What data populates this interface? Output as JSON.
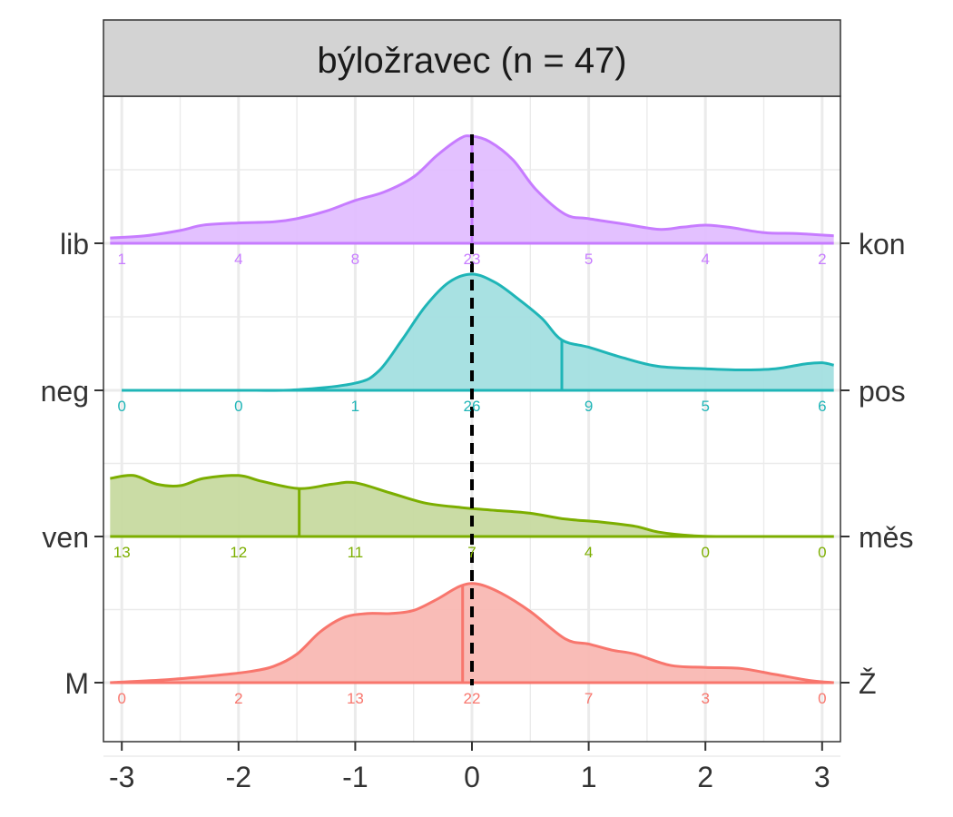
{
  "chart_data": {
    "type": "ridgeline-density",
    "panel_title": "býložravec (n = 47)",
    "xlim": [
      -3.1,
      3.1
    ],
    "x_ticks": [
      -3,
      -2,
      -1,
      0,
      1,
      2,
      3
    ],
    "x_tick_labels": [
      "-3",
      "-2",
      "-1",
      "0",
      "1",
      "2",
      "3"
    ],
    "reference_line": {
      "x": 0,
      "style": "dashed",
      "color": "#000000"
    },
    "count_positions": [
      -3,
      -2,
      -1,
      0,
      1,
      2,
      3
    ],
    "series": [
      {
        "left_label": "lib",
        "right_label": "kon",
        "color": "#C77CFF",
        "fill": "#E2BEFF",
        "mean": 0,
        "counts": [
          "1",
          "4",
          "8",
          "23",
          "5",
          "4",
          "2"
        ],
        "density": [
          [
            -3.1,
            0.05
          ],
          [
            -2.8,
            0.07
          ],
          [
            -2.5,
            0.12
          ],
          [
            -2.3,
            0.17
          ],
          [
            -2.0,
            0.19
          ],
          [
            -1.7,
            0.2
          ],
          [
            -1.5,
            0.23
          ],
          [
            -1.25,
            0.3
          ],
          [
            -1.0,
            0.4
          ],
          [
            -0.75,
            0.48
          ],
          [
            -0.5,
            0.62
          ],
          [
            -0.3,
            0.82
          ],
          [
            -0.1,
            0.98
          ],
          [
            0.0,
            1.0
          ],
          [
            0.15,
            0.95
          ],
          [
            0.35,
            0.78
          ],
          [
            0.55,
            0.5
          ],
          [
            0.8,
            0.27
          ],
          [
            1.0,
            0.23
          ],
          [
            1.3,
            0.18
          ],
          [
            1.6,
            0.13
          ],
          [
            1.8,
            0.15
          ],
          [
            2.0,
            0.17
          ],
          [
            2.2,
            0.15
          ],
          [
            2.5,
            0.1
          ],
          [
            2.8,
            0.09
          ],
          [
            3.1,
            0.07
          ]
        ]
      },
      {
        "left_label": "neg",
        "right_label": "pos",
        "color": "#1FB5B7",
        "fill": "#A3DFE0",
        "mean": 0.77,
        "counts": [
          "0",
          "0",
          "1",
          "26",
          "9",
          "5",
          "6"
        ],
        "density": [
          [
            -3.0,
            0.0
          ],
          [
            -2.5,
            0.0
          ],
          [
            -2.0,
            0.0
          ],
          [
            -1.5,
            0.005
          ],
          [
            -1.0,
            0.06
          ],
          [
            -0.8,
            0.16
          ],
          [
            -0.6,
            0.42
          ],
          [
            -0.4,
            0.7
          ],
          [
            -0.2,
            0.9
          ],
          [
            0.0,
            0.97
          ],
          [
            0.2,
            0.9
          ],
          [
            0.4,
            0.76
          ],
          [
            0.6,
            0.6
          ],
          [
            0.77,
            0.42
          ],
          [
            1.0,
            0.36
          ],
          [
            1.3,
            0.27
          ],
          [
            1.6,
            0.2
          ],
          [
            2.0,
            0.18
          ],
          [
            2.3,
            0.17
          ],
          [
            2.6,
            0.18
          ],
          [
            2.85,
            0.22
          ],
          [
            3.0,
            0.23
          ],
          [
            3.1,
            0.21
          ]
        ]
      },
      {
        "left_label": "ven",
        "right_label": "měs",
        "color": "#7CAE00",
        "fill": "#C7DAA0",
        "mean": -1.48,
        "counts": [
          "13",
          "12",
          "11",
          "7",
          "4",
          "0",
          "0"
        ],
        "density": [
          [
            -3.1,
            0.4
          ],
          [
            -2.9,
            0.42
          ],
          [
            -2.7,
            0.36
          ],
          [
            -2.5,
            0.35
          ],
          [
            -2.3,
            0.4
          ],
          [
            -2.0,
            0.42
          ],
          [
            -1.8,
            0.38
          ],
          [
            -1.48,
            0.33
          ],
          [
            -1.2,
            0.36
          ],
          [
            -1.0,
            0.37
          ],
          [
            -0.7,
            0.3
          ],
          [
            -0.4,
            0.23
          ],
          [
            -0.1,
            0.2
          ],
          [
            0.2,
            0.18
          ],
          [
            0.5,
            0.16
          ],
          [
            0.8,
            0.12
          ],
          [
            1.1,
            0.1
          ],
          [
            1.4,
            0.07
          ],
          [
            1.6,
            0.03
          ],
          [
            1.9,
            0.005
          ],
          [
            2.2,
            0.0
          ],
          [
            2.6,
            0.0
          ],
          [
            3.1,
            0.0
          ]
        ]
      },
      {
        "left_label": "M",
        "right_label": "Ž",
        "color": "#F8766D",
        "fill": "#F9B8B3",
        "mean": -0.08,
        "counts": [
          "0",
          "2",
          "13",
          "22",
          "7",
          "3",
          "0"
        ],
        "density": [
          [
            -3.1,
            0.0
          ],
          [
            -2.6,
            0.03
          ],
          [
            -2.2,
            0.07
          ],
          [
            -1.9,
            0.11
          ],
          [
            -1.7,
            0.16
          ],
          [
            -1.5,
            0.28
          ],
          [
            -1.3,
            0.5
          ],
          [
            -1.1,
            0.64
          ],
          [
            -0.9,
            0.68
          ],
          [
            -0.7,
            0.68
          ],
          [
            -0.5,
            0.71
          ],
          [
            -0.3,
            0.82
          ],
          [
            -0.1,
            0.95
          ],
          [
            0.05,
            0.97
          ],
          [
            0.25,
            0.88
          ],
          [
            0.5,
            0.7
          ],
          [
            0.8,
            0.43
          ],
          [
            1.0,
            0.38
          ],
          [
            1.2,
            0.32
          ],
          [
            1.4,
            0.28
          ],
          [
            1.7,
            0.17
          ],
          [
            2.0,
            0.15
          ],
          [
            2.3,
            0.14
          ],
          [
            2.6,
            0.08
          ],
          [
            2.9,
            0.02
          ],
          [
            3.1,
            0.0
          ]
        ]
      }
    ]
  }
}
